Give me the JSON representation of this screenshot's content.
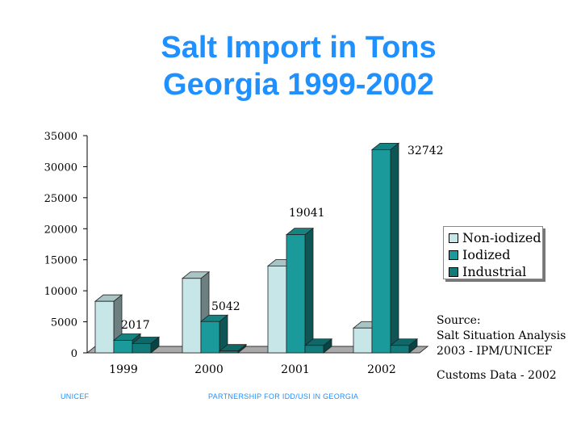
{
  "title_line1": "Salt Import in Tons",
  "title_line2": "Georgia 1999-2002",
  "chart_data": {
    "type": "bar",
    "categories": [
      "1999",
      "2000",
      "2001",
      "2002"
    ],
    "series": [
      {
        "name": "Non-iodized",
        "values": [
          8300,
          12000,
          14000,
          4000
        ],
        "color": "#c6e6e8"
      },
      {
        "name": "Iodized",
        "values": [
          2017,
          5042,
          19041,
          32742
        ],
        "color": "#1a9a9a"
      },
      {
        "name": "Industrial",
        "values": [
          1500,
          300,
          1200,
          1200
        ],
        "color": "#117a7a"
      }
    ],
    "data_labels": [
      "2017",
      "5042",
      "19041",
      "32742"
    ],
    "ylim": [
      0,
      35000
    ],
    "yticks": [
      "0",
      "5000",
      "10000",
      "15000",
      "20000",
      "25000",
      "30000",
      "35000"
    ],
    "legend_position": "right",
    "three_d": true
  },
  "source_lines": [
    "Source:",
    "Salt Situation Analysis",
    "2003 - IPM/UNICEF"
  ],
  "customs_note": "Customs Data - 2002",
  "footer_left": "UNICEF",
  "footer_center": "PARTNERSHIP FOR IDD/USI IN GEORGIA"
}
